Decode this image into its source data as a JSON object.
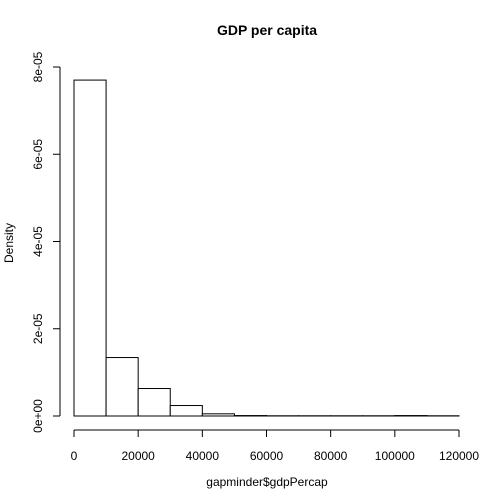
{
  "chart_data": {
    "type": "bar",
    "title": "GDP per capita",
    "xlabel": "gapminder$gdpPercap",
    "ylabel": "Density",
    "xlim": [
      0,
      120000
    ],
    "ylim": [
      0,
      8e-05
    ],
    "bin_width": 10000,
    "bins": [
      {
        "x0": 0,
        "x1": 10000,
        "density": 7.7e-05
      },
      {
        "x0": 10000,
        "x1": 20000,
        "density": 1.34e-05
      },
      {
        "x0": 20000,
        "x1": 30000,
        "density": 6.3e-06
      },
      {
        "x0": 30000,
        "x1": 40000,
        "density": 2.4e-06
      },
      {
        "x0": 40000,
        "x1": 50000,
        "density": 5e-07
      },
      {
        "x0": 50000,
        "x1": 60000,
        "density": 1e-07
      },
      {
        "x0": 60000,
        "x1": 70000,
        "density": 5e-08
      },
      {
        "x0": 70000,
        "x1": 80000,
        "density": 5e-08
      },
      {
        "x0": 80000,
        "x1": 90000,
        "density": 5e-08
      },
      {
        "x0": 90000,
        "x1": 100000,
        "density": 5e-08
      },
      {
        "x0": 100000,
        "x1": 110000,
        "density": 1e-07
      },
      {
        "x0": 110000,
        "x1": 120000,
        "density": 5e-08
      }
    ],
    "x_ticks": [
      0,
      20000,
      40000,
      60000,
      80000,
      100000,
      120000
    ],
    "x_tick_labels": [
      "0",
      "20000",
      "40000",
      "60000",
      "80000",
      "100000",
      "120000"
    ],
    "y_ticks": [
      0,
      2e-05,
      4e-05,
      6e-05,
      8e-05
    ],
    "y_tick_labels": [
      "0e+00",
      "2e-05",
      "4e-05",
      "6e-05",
      "8e-05"
    ],
    "grid": false,
    "legend": "none",
    "bar_fill": "#ffffff",
    "bar_stroke": "#000000"
  }
}
